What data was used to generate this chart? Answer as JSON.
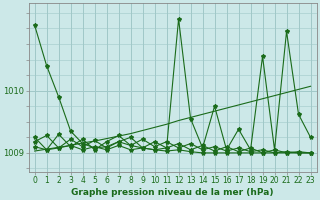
{
  "title": "Graphe pression niveau de la mer (hPa)",
  "bg_color": "#cce8e8",
  "grid_color": "#a0c8c8",
  "line_color": "#1a6b1a",
  "yticks": [
    1009,
    1010
  ],
  "ylim": [
    1008.7,
    1011.4
  ],
  "xlim": [
    -0.5,
    23.5
  ],
  "hours": [
    0,
    1,
    2,
    3,
    4,
    5,
    6,
    7,
    8,
    9,
    10,
    11,
    12,
    13,
    14,
    15,
    16,
    17,
    18,
    19,
    20,
    21,
    22,
    23
  ],
  "main_line": [
    1011.05,
    1010.4,
    1009.9,
    1009.35,
    1009.15,
    1009.08,
    1009.1,
    1009.18,
    1009.12,
    1009.08,
    1009.05,
    1009.03,
    1009.05,
    1009.02,
    1009.0,
    1009.0,
    1009.0,
    1009.0,
    1009.0,
    1009.0,
    1009.0,
    1009.0,
    1009.0,
    1009.0
  ],
  "zigzag": [
    1009.25,
    1009.05,
    1009.3,
    1009.1,
    1009.22,
    1009.05,
    1009.18,
    1009.28,
    1009.12,
    1009.22,
    1009.1,
    1009.18,
    1009.08,
    1009.15,
    1009.05,
    1009.1,
    1009.03,
    1009.08,
    1009.02,
    1009.05,
    1009.0,
    1009.02,
    1009.0,
    1009.0
  ],
  "zigzag2": [
    1009.18,
    1009.28,
    1009.08,
    1009.22,
    1009.1,
    1009.2,
    1009.08,
    1009.18,
    1009.25,
    1009.08,
    1009.18,
    1009.08,
    1009.15,
    1009.05,
    1009.12,
    1009.03,
    1009.1,
    1009.02,
    1009.08,
    1009.0,
    1009.05,
    1009.0,
    1009.02,
    1009.0
  ],
  "spiky": [
    1009.1,
    1009.05,
    1009.08,
    1009.12,
    1009.05,
    1009.1,
    1009.05,
    1009.12,
    1009.05,
    1009.08,
    1009.05,
    1009.08,
    1011.15,
    1009.55,
    1009.08,
    1009.75,
    1009.05,
    1009.38,
    1009.05,
    1010.55,
    1009.05,
    1010.95,
    1009.62,
    1009.25
  ],
  "trend": [
    1009.03,
    1009.06,
    1009.09,
    1009.12,
    1009.16,
    1009.19,
    1009.23,
    1009.27,
    1009.31,
    1009.36,
    1009.41,
    1009.46,
    1009.52,
    1009.57,
    1009.62,
    1009.67,
    1009.72,
    1009.77,
    1009.82,
    1009.87,
    1009.92,
    1009.97,
    1010.02,
    1010.07
  ],
  "x_labels": [
    "0",
    "1",
    "2",
    "3",
    "4",
    "5",
    "6",
    "7",
    "8",
    "9",
    "10",
    "11",
    "12",
    "13",
    "14",
    "15",
    "16",
    "17",
    "18",
    "19",
    "20",
    "21",
    "22",
    "23"
  ],
  "title_fontsize": 6.5,
  "tick_fontsize": 5.5,
  "ytick_fontsize": 6.0
}
